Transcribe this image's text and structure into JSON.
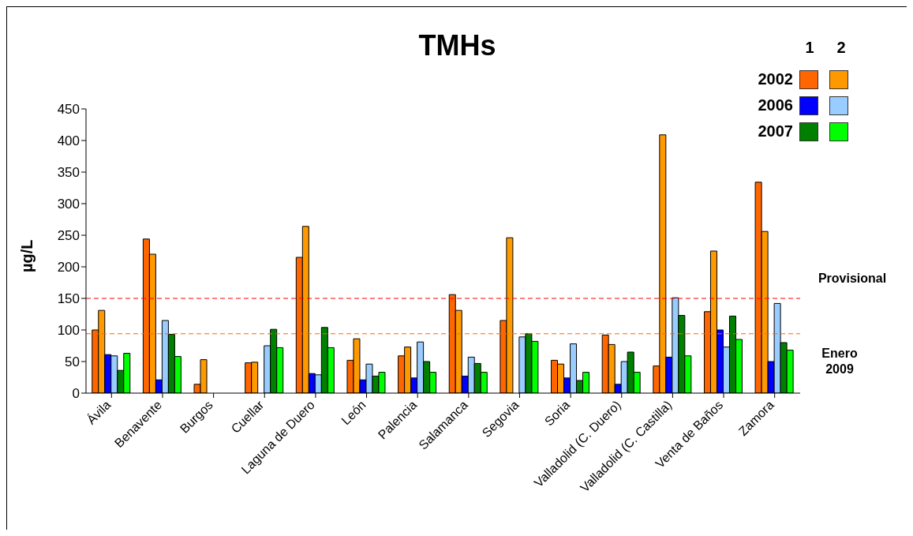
{
  "chart_data": {
    "type": "bar",
    "title": "TMHs",
    "ylabel": "µg/L",
    "categories": [
      "Ávila",
      "Benavente",
      "Burgos",
      "Cuellar",
      "Laguna de Duero",
      "León",
      "Palencia",
      "Salamanca",
      "Segovia",
      "Soria",
      "Valladolid (C. Duero)",
      "Valladolid (C. Castilla)",
      "Venta de Baños",
      "Zamora"
    ],
    "series": [
      {
        "name": "2002",
        "color": "#ff6600",
        "values": [
          100,
          244,
          14,
          48,
          215,
          52,
          59,
          156,
          115,
          52,
          92,
          43,
          129,
          334
        ]
      },
      {
        "color": "#ff9900",
        "values": [
          131,
          220,
          53,
          49,
          264,
          86,
          73,
          131,
          246,
          46,
          77,
          409,
          225,
          256
        ]
      },
      {
        "name": "2006",
        "color": "#0000ff",
        "values": [
          61,
          21,
          null,
          null,
          31,
          21,
          24,
          27,
          null,
          24,
          14,
          57,
          100,
          50
        ]
      },
      {
        "color": "#99ccff",
        "values": [
          59,
          115,
          null,
          75,
          29,
          46,
          81,
          57,
          89,
          78,
          50,
          151,
          73,
          142
        ]
      },
      {
        "name": "2007",
        "color": "#008000",
        "values": [
          36,
          93,
          null,
          101,
          104,
          27,
          50,
          47,
          94,
          20,
          65,
          123,
          122,
          80
        ]
      },
      {
        "color": "#00ff00",
        "values": [
          63,
          58,
          null,
          72,
          72,
          33,
          33,
          33,
          82,
          33,
          33,
          59,
          85,
          68
        ]
      }
    ],
    "annotations": [
      "1",
      "2"
    ],
    "ylim": [
      0,
      450
    ],
    "yticks": [
      0,
      50,
      100,
      150,
      200,
      250,
      300,
      350,
      400,
      450
    ],
    "ref_lines": [
      {
        "axis": "y",
        "value": 150,
        "label": "Provisional",
        "color": "#ff0000",
        "line_style": "dashed"
      },
      {
        "axis": "y",
        "value": 94,
        "label": "Enero 2009",
        "color": "#ff6600",
        "line_style": "dashed"
      }
    ],
    "grid": false,
    "legend": "top right"
  }
}
